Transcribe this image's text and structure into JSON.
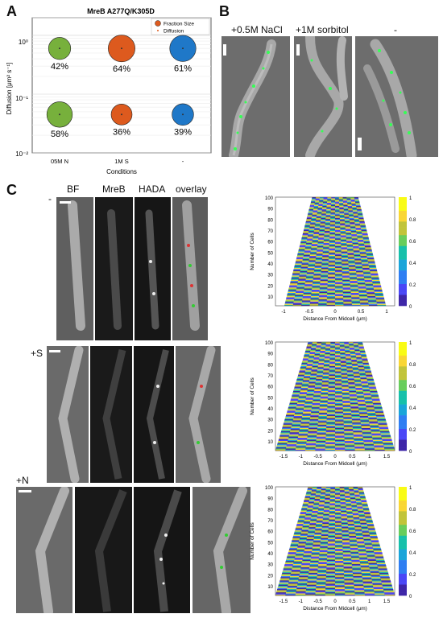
{
  "panel_letters": {
    "a": "A",
    "b": "B",
    "c": "C"
  },
  "panel_a": {
    "title": "MreB A277Q/K305D",
    "ylabel": "Diffusion [μm² s⁻¹]",
    "xlabel": "Conditions",
    "legend": {
      "fraction": "Fraction Size",
      "diffusion": "Diffusion"
    },
    "y_ticks": [
      "10⁰",
      "10⁻¹",
      "10⁻²"
    ],
    "x_ticks": [
      "05M N",
      "1M S",
      "-"
    ]
  },
  "chart_data": {
    "type": "scatter",
    "title": "MreB A277Q/K305D",
    "xlabel": "Conditions",
    "ylabel": "Diffusion [μm² s⁻¹]",
    "yscale": "log",
    "ylim": [
      0.01,
      2
    ],
    "categories": [
      "05M N",
      "1M S",
      "-"
    ],
    "series": [
      {
        "name": "",
        "y": 0.6,
        "labels": [
          "42%",
          "64%",
          "61%"
        ],
        "fractions": [
          42,
          64,
          61
        ],
        "colors": [
          "#77b03c",
          "#dd5a1e",
          "#1f78c8"
        ]
      },
      {
        "name": "",
        "y": 0.045,
        "labels": [
          "58%",
          "36%",
          "39%"
        ],
        "fractions": [
          58,
          36,
          39
        ],
        "colors": [
          "#77b03c",
          "#dd5a1e",
          "#1f78c8"
        ]
      }
    ],
    "legend": [
      "Fraction Size",
      "Diffusion"
    ],
    "legend_position": "top-right"
  },
  "panel_b": {
    "labels": [
      "+0.5M NaCl",
      "+1M sorbitol",
      "-"
    ]
  },
  "panel_c": {
    "columns": [
      "BF",
      "MreB",
      "HADA",
      "overlay"
    ],
    "rows": [
      "-",
      "+S",
      "+N"
    ],
    "heatmap": {
      "ylabel": "Number of Cells",
      "xlabel": "Distance From Midcell (μm)",
      "y_ticks": [
        "100",
        "90",
        "80",
        "70",
        "60",
        "50",
        "40",
        "30",
        "20",
        "10"
      ],
      "colorbar_ticks": [
        "1",
        "0.8",
        "0.6",
        "0.4",
        "0.2",
        "0"
      ],
      "x_ticks_1": [
        "-1",
        "-0.5",
        "0",
        "0.5",
        "1"
      ],
      "x_ticks_2": [
        "-1.5",
        "-1",
        "-0.5",
        "0",
        "0.5",
        "1",
        "1.5"
      ],
      "x_ticks_3": [
        "-1.5",
        "-1",
        "-0.5",
        "0",
        "0.5",
        "1",
        "1.5"
      ]
    }
  }
}
